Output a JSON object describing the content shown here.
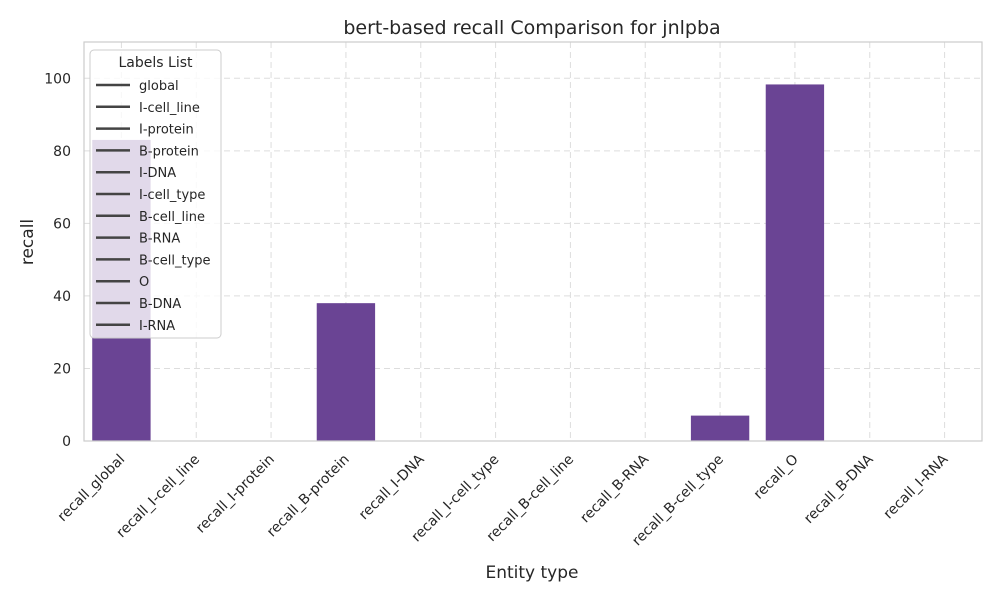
{
  "chart_data": {
    "type": "bar",
    "title": "bert-based  recall Comparison for jnlpba",
    "xlabel": "Entity type",
    "ylabel": "recall",
    "categories": [
      "recall_global",
      "recall_I-cell_line",
      "recall_I-protein",
      "recall_B-protein",
      "recall_I-DNA",
      "recall_I-cell_type",
      "recall_B-cell_line",
      "recall_B-RNA",
      "recall_B-cell_type",
      "recall_O",
      "recall_B-DNA",
      "recall_I-RNA"
    ],
    "values": [
      83,
      0,
      0,
      38,
      0,
      0,
      0,
      0,
      7,
      98.3,
      0,
      0
    ],
    "ylim": [
      0,
      110
    ],
    "yticks": [
      0,
      20,
      40,
      60,
      80,
      100
    ],
    "grid": true,
    "bar_color": "#6a4494",
    "legend": {
      "title": "Labels List",
      "position": "top-left",
      "entries": [
        "global",
        "I-cell_line",
        "I-protein",
        "B-protein",
        "I-DNA",
        "I-cell_type",
        "B-cell_line",
        "B-RNA",
        "B-cell_type",
        "O",
        "B-DNA",
        "I-RNA"
      ]
    }
  }
}
